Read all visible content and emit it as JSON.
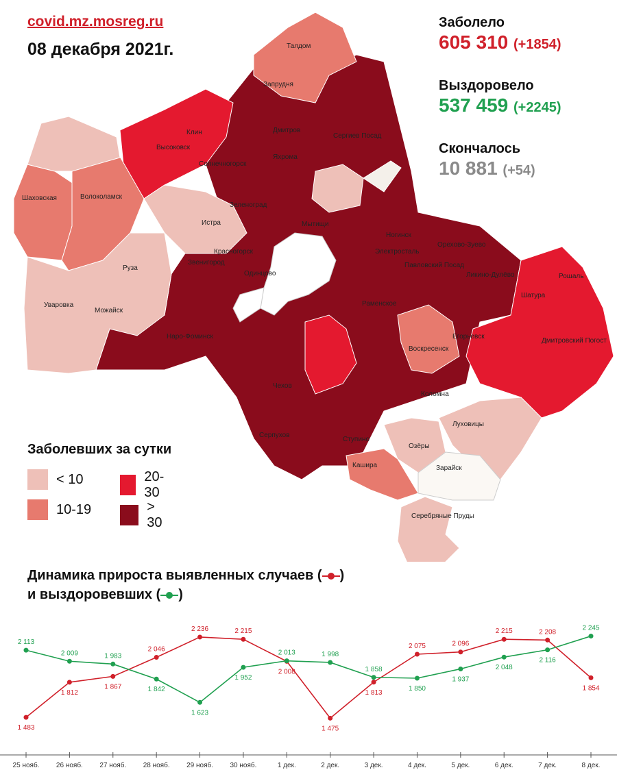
{
  "header": {
    "source": "covid.mz.mosreg.ru",
    "date": "08 декабря 2021г."
  },
  "stats": {
    "cases": {
      "title": "Заболело",
      "value": "605 310",
      "delta": "(+1854)",
      "color": "#d0202a"
    },
    "recovered": {
      "title": "Выздоровело",
      "value": "537 459",
      "delta": "(+2245)",
      "color": "#20a050"
    },
    "deaths": {
      "title": "Скончалось",
      "value": "10 881",
      "delta": "(+54)",
      "color": "#8a8a8a"
    }
  },
  "legend": {
    "title": "Заболевших за сутки",
    "items": [
      {
        "label": "< 10",
        "color": "#eec0b8"
      },
      {
        "label": "20-30",
        "color": "#e4192f"
      },
      {
        "label": "10-19",
        "color": "#e77a6e"
      },
      {
        "label": "> 30",
        "color": "#8a0c1c"
      }
    ]
  },
  "map_labels": [
    "Талдом",
    "Запрудня",
    "Клин",
    "Высоковск",
    "Дмитров",
    "Сергиев Посад",
    "Яхрома",
    "Солнечногорск",
    "Шаховская",
    "Волоколамск",
    "Зеленоград",
    "Истра",
    "Мытищи",
    "Ногинск",
    "Электросталь",
    "Орехово-Зуево",
    "Павловский Посад",
    "Ликино-Дулёво",
    "Красногорск",
    "Звенигород",
    "Одинцово",
    "Руза",
    "Уваровка",
    "Можайск",
    "Раменское",
    "Шатура",
    "Наро-Фоминск",
    "Егорьевск",
    "Рошаль",
    "Воскресенск",
    "Дмитровский Погост",
    "Чехов",
    "Коломна",
    "Серпухов",
    "Ступино",
    "Луховицы",
    "Озёры",
    "Кашира",
    "Зарайск",
    "Серебряные Пруды"
  ],
  "chart": {
    "heading_line1": "Динамика прироста выявленных случаев (",
    "heading_line1_end": ")",
    "heading_line2": "и выздоровевших (",
    "heading_line2_end": ")"
  },
  "chart_data": {
    "type": "line",
    "categories": [
      "25 нояб.",
      "26 нояб.",
      "27 нояб.",
      "28 нояб.",
      "29 нояб.",
      "30 нояб.",
      "1 дек.",
      "2 дек.",
      "3 дек.",
      "4 дек.",
      "5 дек.",
      "6 дек.",
      "7 дек.",
      "8 дек."
    ],
    "series": [
      {
        "color": "#d0202a",
        "values": [
          1483,
          1812,
          1867,
          2046,
          2236,
          2215,
          2008,
          1475,
          1813,
          2075,
          2096,
          2215,
          2208,
          1854
        ],
        "labels": [
          "1 483",
          "1 812",
          "1 867",
          "2 046",
          "2 236",
          "2 215",
          "2 008",
          "1 475",
          "1 813",
          "2 075",
          "2 096",
          "2 215",
          "2 208",
          "1 854"
        ]
      },
      {
        "color": "#20a050",
        "values": [
          2113,
          2009,
          1983,
          1842,
          1623,
          1952,
          2013,
          1998,
          1858,
          1850,
          1937,
          2048,
          2116,
          2245
        ],
        "labels": [
          "2 113",
          "2 009",
          "1 983",
          "1 842",
          "1 623",
          "1 952",
          "2 013",
          "1 998",
          "1 858",
          "1 850",
          "1 937",
          "2 048",
          "2 116",
          "2 245"
        ]
      }
    ],
    "ylim": [
      1400,
      2300
    ]
  }
}
